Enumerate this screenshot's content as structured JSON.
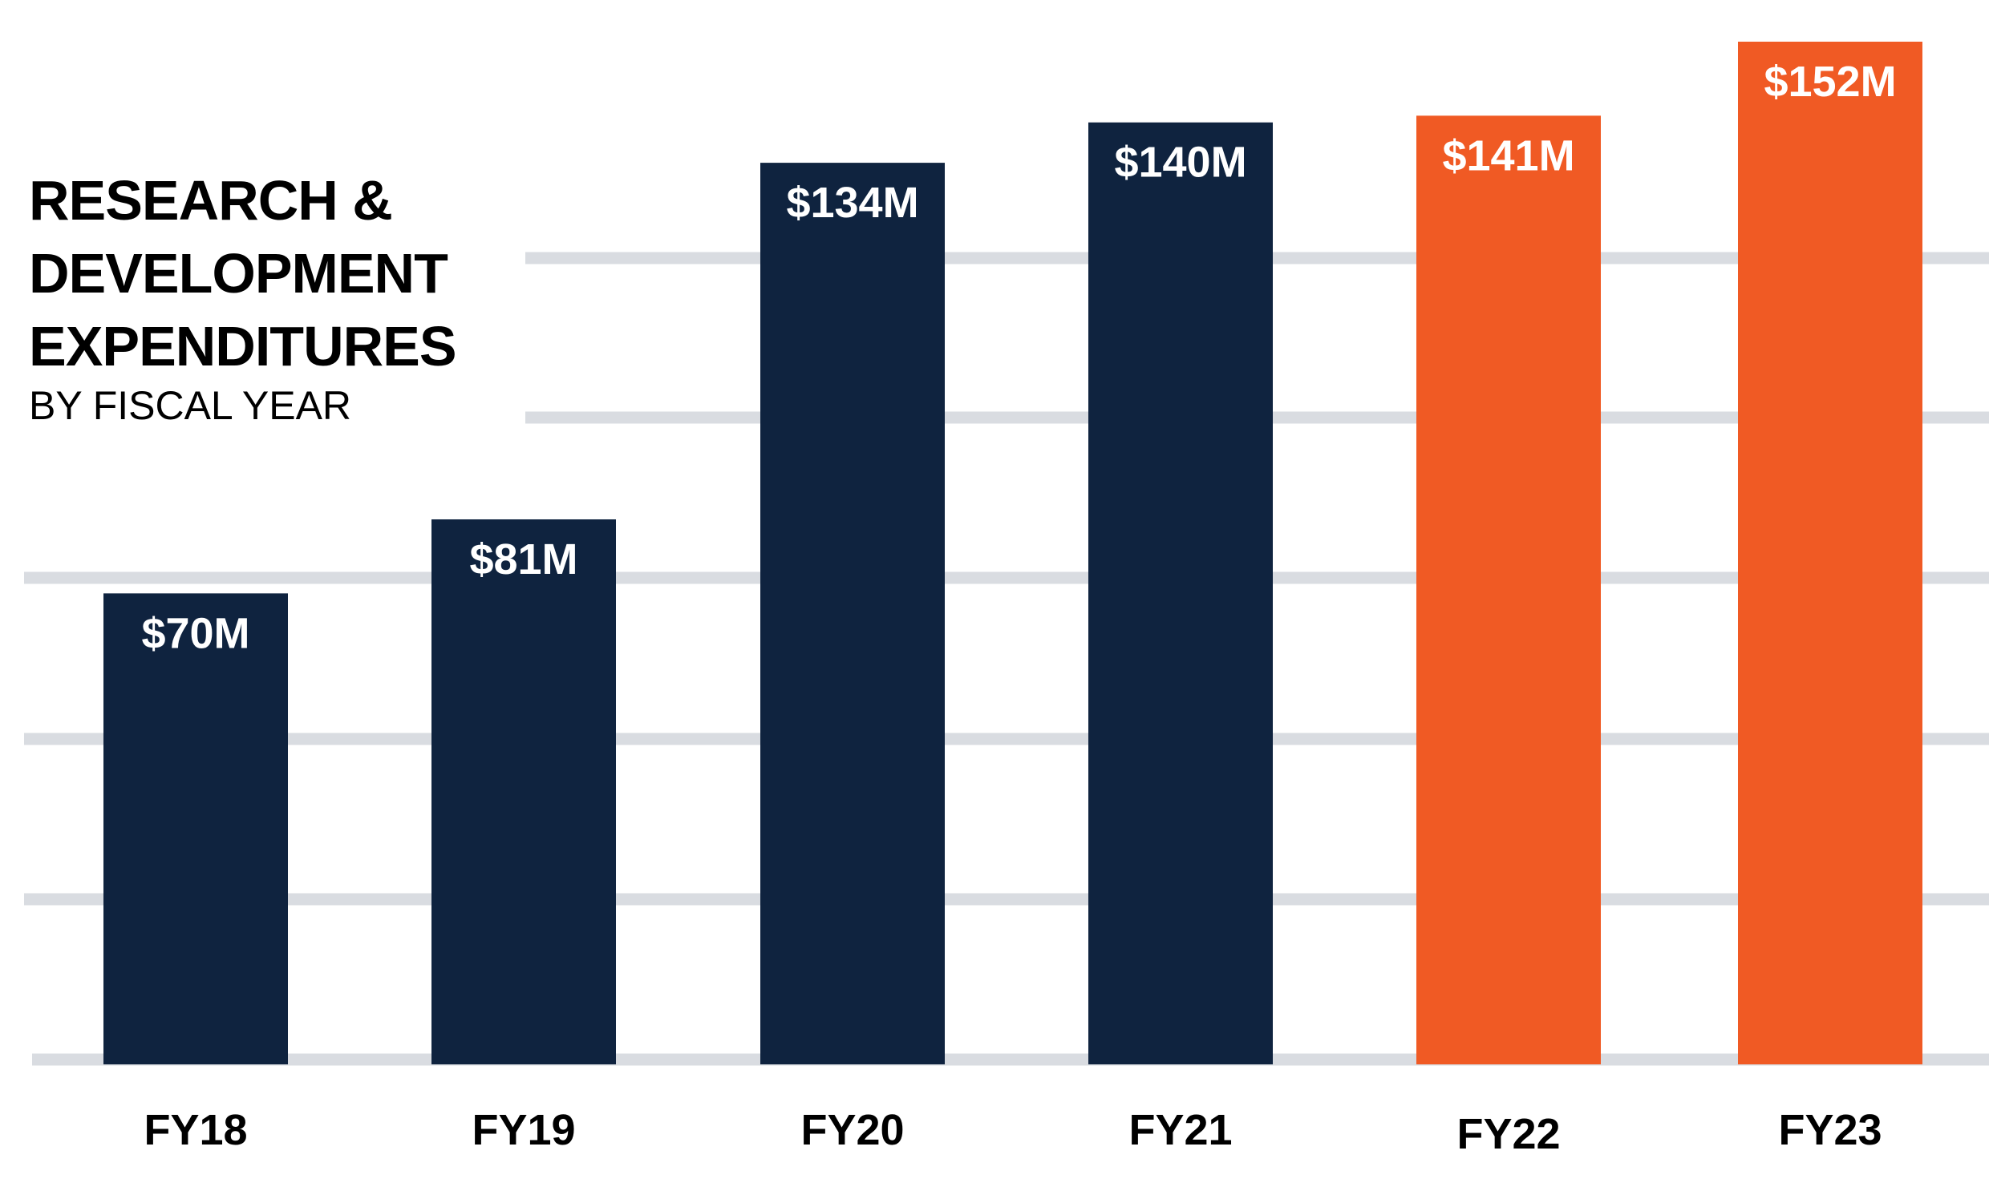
{
  "title": {
    "line1": "RESEARCH &",
    "line2": "DEVELOPMENT",
    "line3": "EXPENDITURES",
    "subtitle": "BY FISCAL YEAR"
  },
  "colors": {
    "navy": "#0f233f",
    "orange": "#f05a24",
    "gridline": "#d9dce1",
    "background": "#ffffff"
  },
  "chart_data": {
    "type": "bar",
    "title": "RESEARCH & DEVELOPMENT EXPENDITURES",
    "subtitle": "BY FISCAL YEAR",
    "xlabel": "",
    "ylabel": "",
    "categories": [
      "FY18",
      "FY19",
      "FY20",
      "FY21",
      "FY22",
      "FY23"
    ],
    "values": [
      70,
      81,
      134,
      140,
      141,
      152
    ],
    "units": "$M",
    "data_labels": [
      "$70M",
      "$81M",
      "$134M",
      "$140M",
      "$141M",
      "$152M"
    ],
    "bar_colors": [
      "navy",
      "navy",
      "navy",
      "navy",
      "orange",
      "orange"
    ],
    "ylim": [
      0,
      152
    ],
    "grid": true,
    "legend": "none"
  }
}
